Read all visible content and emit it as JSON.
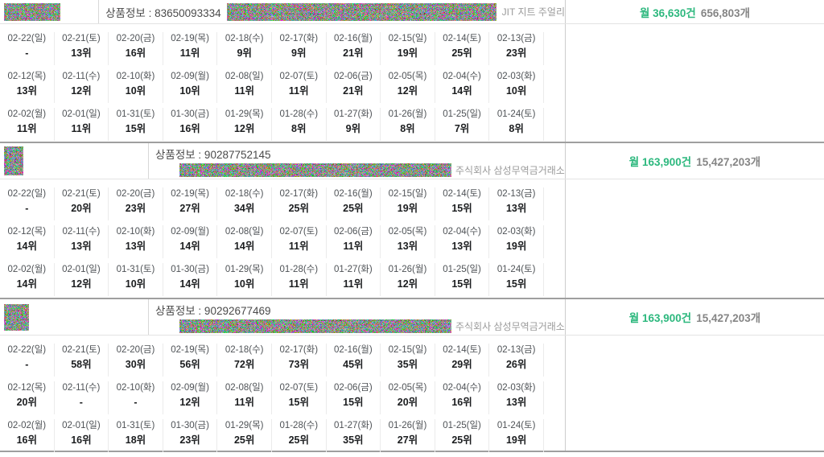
{
  "colors": {
    "accent_green": "#2db87e",
    "stat_gray": "#858585"
  },
  "date_rows": [
    [
      "02-22(일)",
      "02-21(토)",
      "02-20(금)",
      "02-19(목)",
      "02-18(수)",
      "02-17(화)",
      "02-16(월)",
      "02-15(일)",
      "02-14(토)",
      "02-13(금)"
    ],
    [
      "02-12(목)",
      "02-11(수)",
      "02-10(화)",
      "02-09(월)",
      "02-08(일)",
      "02-07(토)",
      "02-06(금)",
      "02-05(목)",
      "02-04(수)",
      "02-03(화)"
    ],
    [
      "02-02(월)",
      "02-01(일)",
      "01-31(토)",
      "01-30(금)",
      "01-29(목)",
      "01-28(수)",
      "01-27(화)",
      "01-26(월)",
      "01-25(일)",
      "01-24(토)"
    ]
  ],
  "sections": [
    {
      "product_info": "상품정보 : 83650093334",
      "seller": "JIT 지트 주얼리",
      "monthly_count": "월 36,630건",
      "total_count": "656,803개",
      "two_line": false,
      "ranks": [
        [
          "-",
          "13위",
          "16위",
          "11위",
          "9위",
          "9위",
          "21위",
          "19위",
          "25위",
          "23위"
        ],
        [
          "13위",
          "12위",
          "10위",
          "10위",
          "11위",
          "11위",
          "21위",
          "12위",
          "14위",
          "10위"
        ],
        [
          "11위",
          "11위",
          "15위",
          "16위",
          "12위",
          "8위",
          "9위",
          "8위",
          "7위",
          "8위"
        ]
      ]
    },
    {
      "product_info": "상품정보 : 90287752145",
      "seller": "주식회사 삼성무역금거래소",
      "monthly_count": "월 163,900건",
      "total_count": "15,427,203개",
      "two_line": true,
      "ranks": [
        [
          "-",
          "20위",
          "23위",
          "27위",
          "34위",
          "25위",
          "25위",
          "19위",
          "15위",
          "13위"
        ],
        [
          "14위",
          "13위",
          "13위",
          "14위",
          "14위",
          "11위",
          "11위",
          "13위",
          "13위",
          "19위"
        ],
        [
          "14위",
          "12위",
          "10위",
          "14위",
          "10위",
          "11위",
          "11위",
          "12위",
          "15위",
          "15위"
        ]
      ]
    },
    {
      "product_info": "상품정보 : 90292677469",
      "seller": "주식회사 삼성무역금거래소",
      "monthly_count": "월 163,900건",
      "total_count": "15,427,203개",
      "two_line": true,
      "ranks": [
        [
          "-",
          "58위",
          "30위",
          "56위",
          "72위",
          "73위",
          "45위",
          "35위",
          "29위",
          "26위"
        ],
        [
          "20위",
          "-",
          "-",
          "12위",
          "11위",
          "15위",
          "15위",
          "20위",
          "16위",
          "13위"
        ],
        [
          "16위",
          "16위",
          "18위",
          "23위",
          "25위",
          "25위",
          "35위",
          "27위",
          "25위",
          "19위"
        ]
      ]
    }
  ]
}
